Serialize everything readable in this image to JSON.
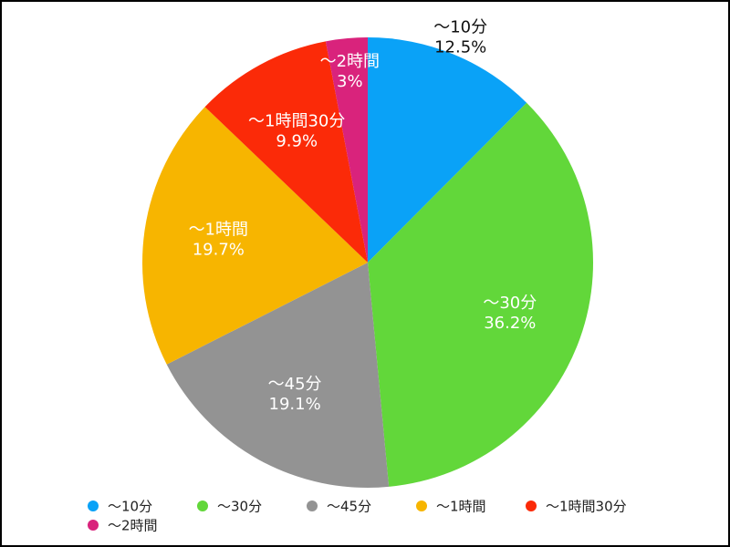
{
  "chart_data": {
    "type": "pie",
    "categories": [
      "〜10分",
      "〜30分",
      "〜45分",
      "〜1時間",
      "〜1時間30分",
      "〜2時間"
    ],
    "values": [
      12.5,
      36.2,
      19.1,
      19.7,
      9.9,
      3
    ],
    "value_labels": [
      "12.5%",
      "36.2%",
      "19.1%",
      "19.7%",
      "9.9%",
      "3%"
    ],
    "colors": [
      "#0aa2f7",
      "#62d73a",
      "#939393",
      "#f7b500",
      "#fb2a08",
      "#d9237c"
    ],
    "legend": "bottom"
  }
}
